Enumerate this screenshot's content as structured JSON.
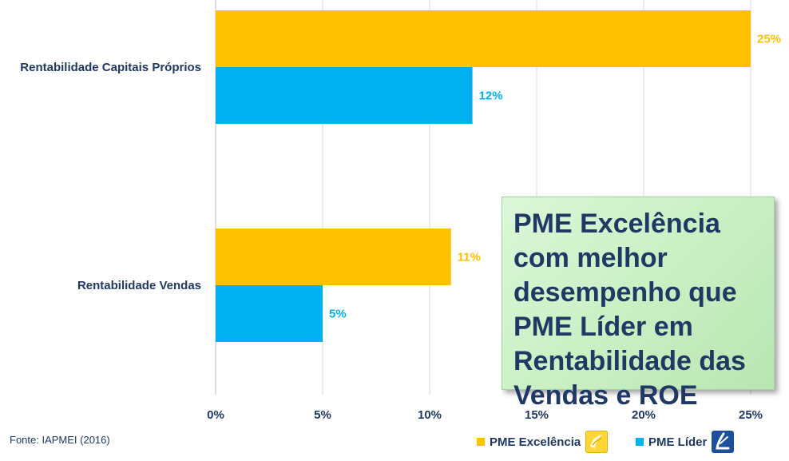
{
  "chart_data": {
    "type": "bar",
    "orientation": "horizontal",
    "categories": [
      "Rentabilidade Capitais Próprios",
      "Rentabilidade Vendas"
    ],
    "series": [
      {
        "name": "PME Excelência",
        "values": [
          25,
          11
        ],
        "labels": [
          "25%",
          "11%"
        ],
        "color": "#FFC000"
      },
      {
        "name": "PME Líder",
        "values": [
          12,
          5
        ],
        "labels": [
          "12%",
          "5%"
        ],
        "color": "#00B0F0"
      }
    ],
    "xlim": [
      0,
      25
    ],
    "xticks": [
      "0%",
      "5%",
      "10%",
      "15%",
      "20%",
      "25%"
    ],
    "grid": true,
    "legend": "bottom-right",
    "annotation": "PME Excelência com melhor desempenho que PME Líder em Rentabilidade das Vendas e ROE",
    "source": "Fonte: IAPMEI (2016)"
  },
  "colors": {
    "axis_text": "#1f3864",
    "gridline": "#d9d9d9"
  },
  "icons": {
    "excelencia": "pme-excelencia-logo-icon",
    "lider": "pme-lider-logo-icon"
  }
}
